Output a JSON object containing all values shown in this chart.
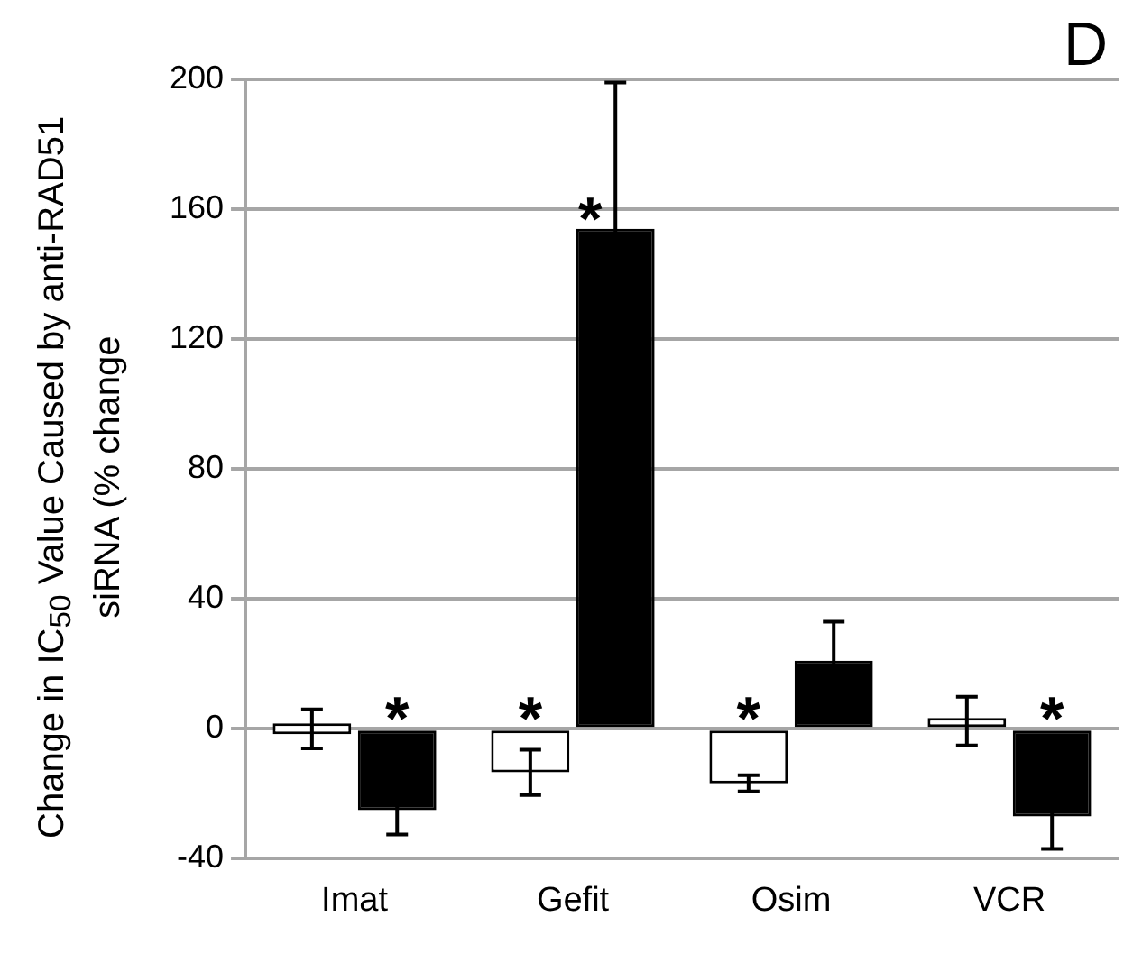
{
  "chart_data": {
    "type": "bar",
    "ylabel": "Change in  IC$_{50}$ Value Caused by anti-RAD51 siRNA (% change",
    "annotations": [
      "D"
    ],
    "categories": [
      "Imat",
      "Gefit",
      "Osim",
      "VCR"
    ],
    "ylim": [
      -40,
      200
    ],
    "yticks": [
      -40,
      0,
      40,
      80,
      120,
      160,
      200
    ],
    "grid": "y",
    "legend": false,
    "series": [
      {
        "color": "#ffffff",
        "values": [
          0,
          -13.4,
          -16.8,
          2.4
        ],
        "errors": [
          6,
          7,
          2.5,
          7.5
        ],
        "value_labels": [
          null,
          "*",
          "*",
          null
        ]
      },
      {
        "color": "#000000",
        "values": [
          -25,
          154,
          21,
          -27
        ],
        "errors": [
          7.5,
          45,
          12,
          10
        ],
        "value_labels": [
          "*",
          "*",
          null,
          "*"
        ]
      }
    ]
  }
}
